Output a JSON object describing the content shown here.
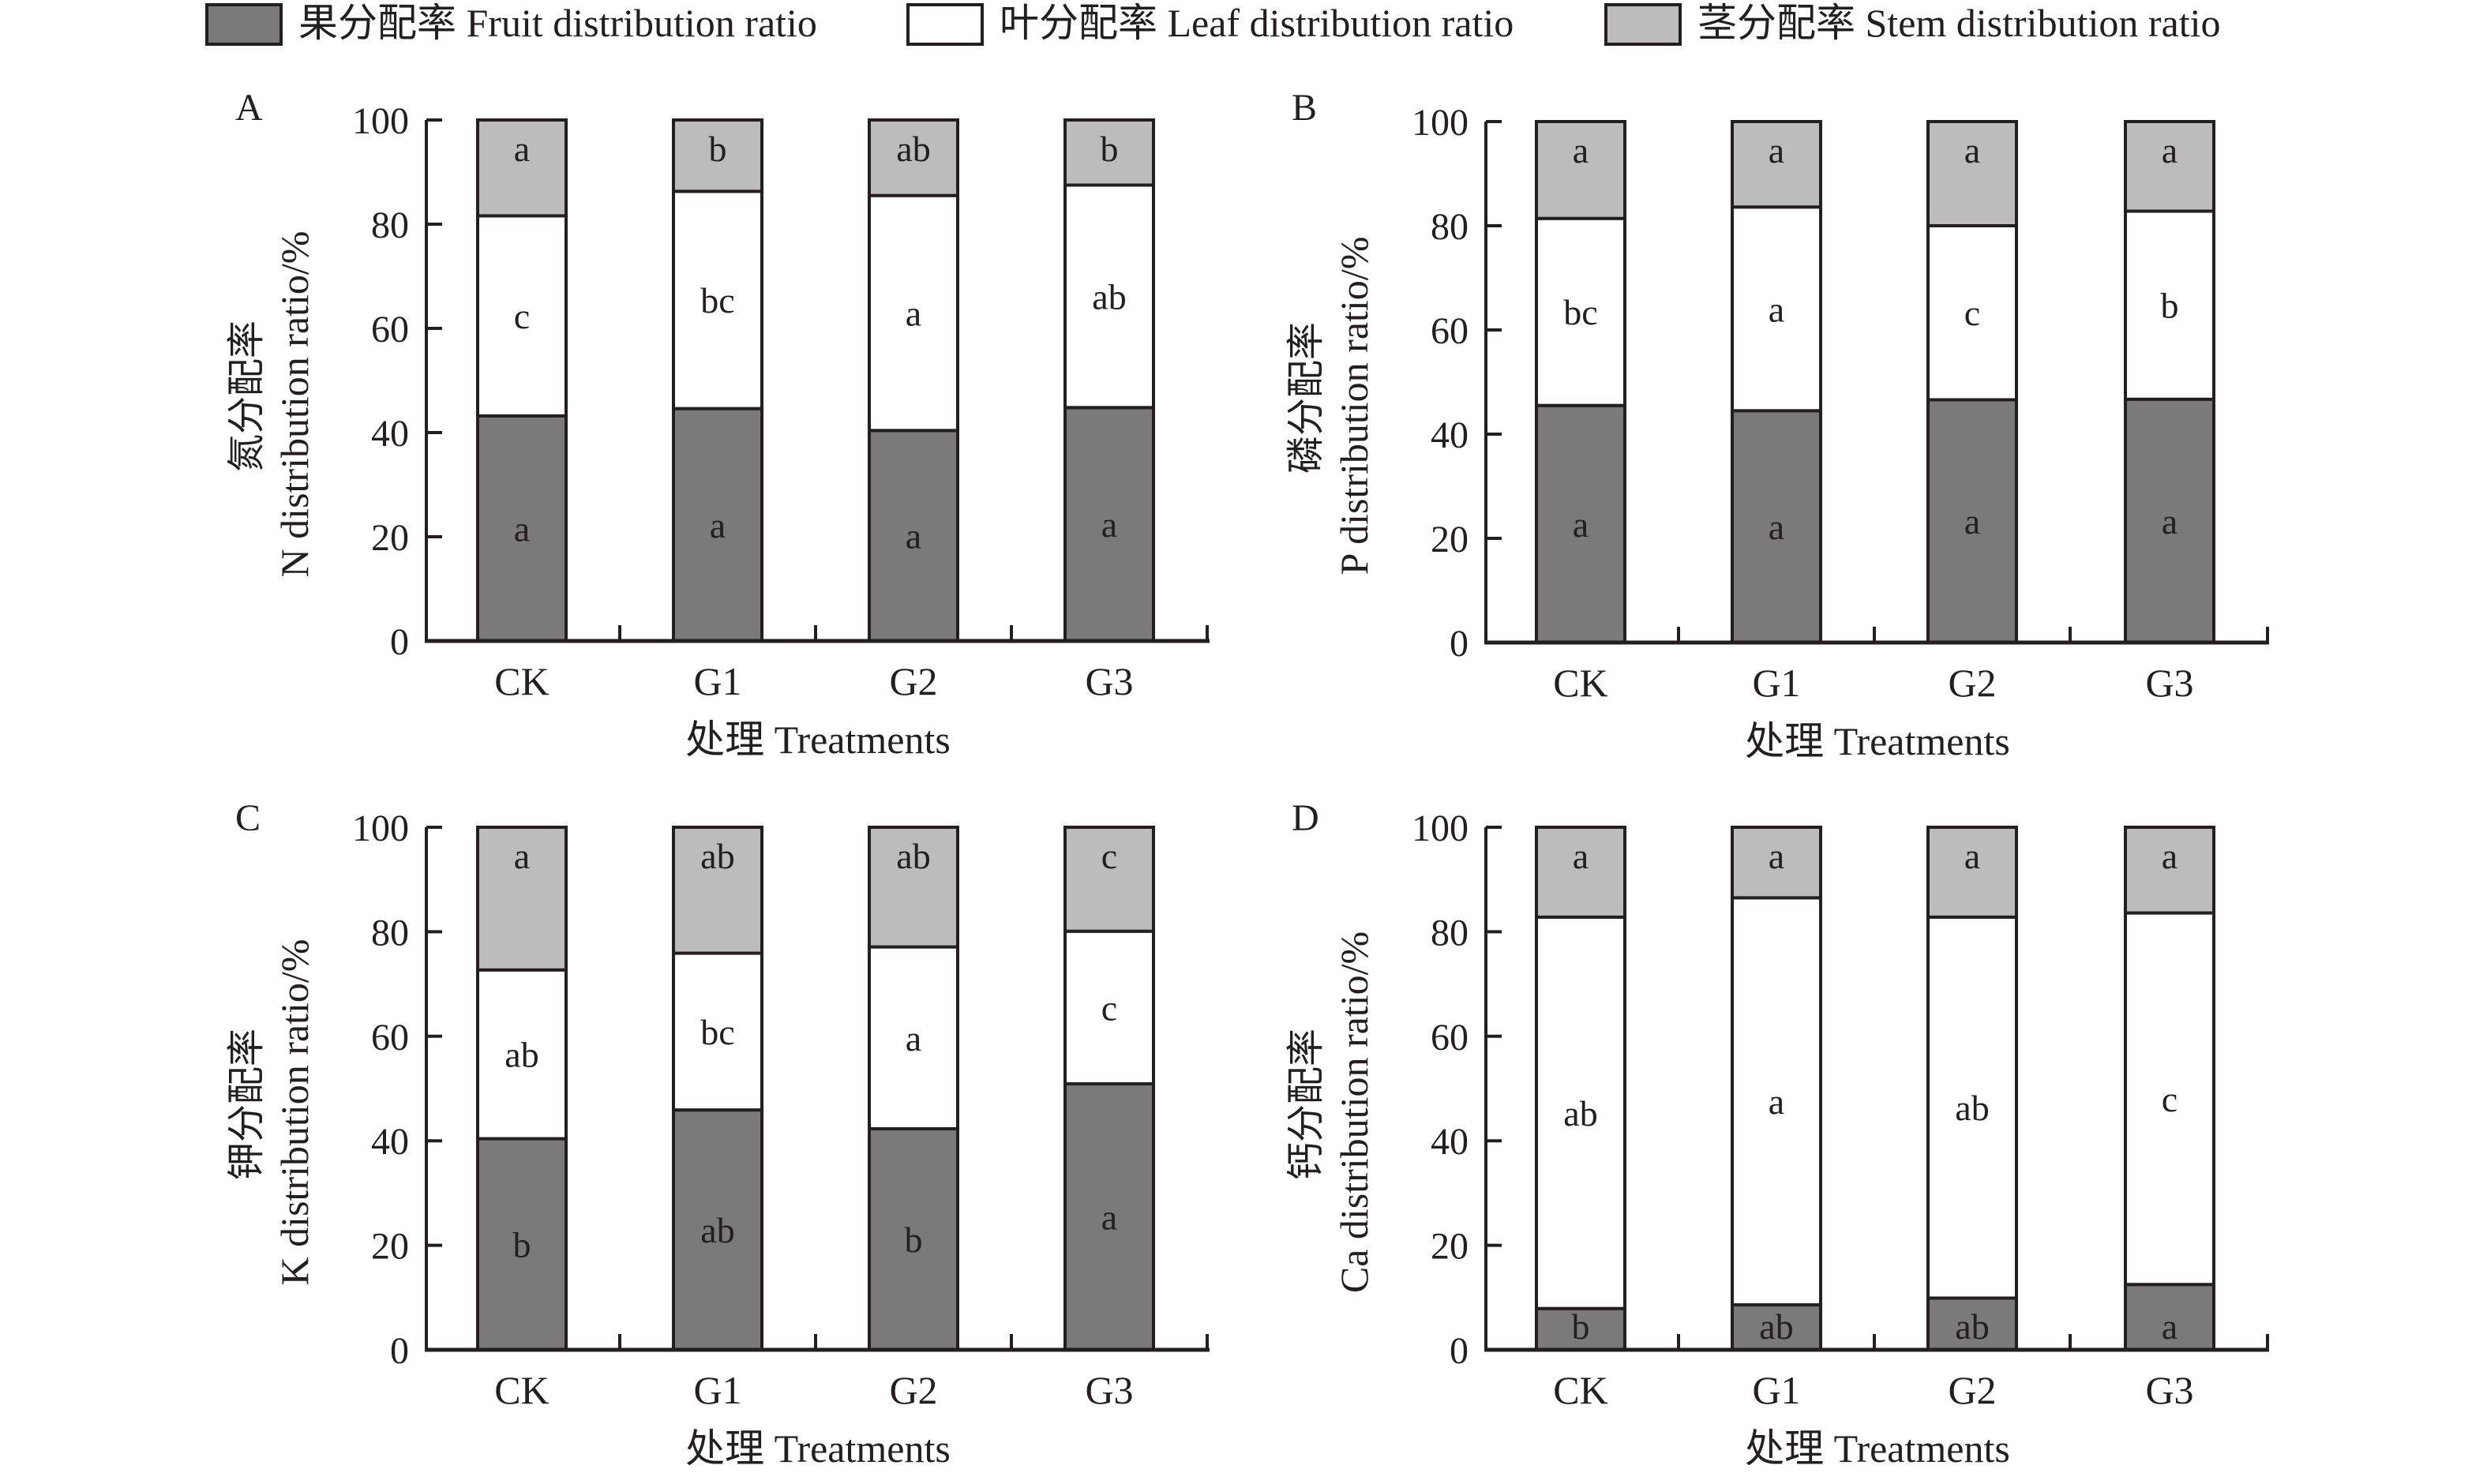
{
  "chart_data": [
    {
      "panel": "A",
      "type": "bar",
      "stacked": true,
      "categories": [
        "CK",
        "G1",
        "G2",
        "G3"
      ],
      "xlabel": "处理 Treatments",
      "ylabel_cn": "氮分配率",
      "ylabel_en": "N distribution ratio/%",
      "ylim": [
        0,
        100
      ],
      "yticks": [
        0,
        20,
        40,
        60,
        80,
        100
      ],
      "series": [
        {
          "name": "果分配率 Fruit distribution ratio",
          "key": "fruit",
          "values": [
            43.2,
            44.6,
            40.4,
            44.8
          ],
          "letters": [
            "a",
            "a",
            "a",
            "a"
          ]
        },
        {
          "name": "叶分配率 Leaf distribution ratio",
          "key": "leaf",
          "values": [
            38.4,
            41.7,
            45.1,
            42.7
          ],
          "letters": [
            "c",
            "bc",
            "a",
            "ab"
          ]
        },
        {
          "name": "茎分配率 Stem distribution ratio",
          "key": "stem",
          "values": [
            18.4,
            13.7,
            14.5,
            12.5
          ],
          "letters": [
            "a",
            "b",
            "ab",
            "b"
          ]
        }
      ]
    },
    {
      "panel": "B",
      "type": "bar",
      "stacked": true,
      "categories": [
        "CK",
        "G1",
        "G2",
        "G3"
      ],
      "xlabel": "处理 Treatments",
      "ylabel_cn": "磷分配率",
      "ylabel_en": "P distribution ratio/%",
      "ylim": [
        0,
        100
      ],
      "yticks": [
        0,
        20,
        40,
        60,
        80,
        100
      ],
      "series": [
        {
          "name": "果分配率 Fruit distribution ratio",
          "key": "fruit",
          "values": [
            45.5,
            44.5,
            46.6,
            46.7
          ],
          "letters": [
            "a",
            "a",
            "a",
            "a"
          ]
        },
        {
          "name": "叶分配率 Leaf distribution ratio",
          "key": "leaf",
          "values": [
            35.9,
            39.1,
            33.4,
            36.1
          ],
          "letters": [
            "bc",
            "a",
            "c",
            "b"
          ]
        },
        {
          "name": "茎分配率 Stem distribution ratio",
          "key": "stem",
          "values": [
            18.6,
            16.4,
            20.0,
            17.2
          ],
          "letters": [
            "a",
            "a",
            "a",
            "a"
          ]
        }
      ]
    },
    {
      "panel": "C",
      "type": "bar",
      "stacked": true,
      "categories": [
        "CK",
        "G1",
        "G2",
        "G3"
      ],
      "xlabel": "处理 Treatments",
      "ylabel_cn": "钾分配率",
      "ylabel_en": "K distribution ratio/%",
      "ylim": [
        0,
        100
      ],
      "yticks": [
        0,
        20,
        40,
        60,
        80,
        100
      ],
      "series": [
        {
          "name": "果分配率 Fruit distribution ratio",
          "key": "fruit",
          "values": [
            40.4,
            45.9,
            42.3,
            50.9
          ],
          "letters": [
            "b",
            "ab",
            "b",
            "a"
          ]
        },
        {
          "name": "叶分配率 Leaf distribution ratio",
          "key": "leaf",
          "values": [
            32.3,
            30.0,
            34.8,
            29.2
          ],
          "letters": [
            "ab",
            "bc",
            "a",
            "c"
          ]
        },
        {
          "name": "茎分配率 Stem distribution ratio",
          "key": "stem",
          "values": [
            27.3,
            24.1,
            22.9,
            19.9
          ],
          "letters": [
            "a",
            "ab",
            "ab",
            "c"
          ]
        }
      ]
    },
    {
      "panel": "D",
      "type": "bar",
      "stacked": true,
      "categories": [
        "CK",
        "G1",
        "G2",
        "G3"
      ],
      "xlabel": "处理 Treatments",
      "ylabel_cn": "钙分配率",
      "ylabel_en": "Ca distribution ratio/%",
      "ylim": [
        0,
        100
      ],
      "yticks": [
        0,
        20,
        40,
        60,
        80,
        100
      ],
      "series": [
        {
          "name": "果分配率 Fruit distribution ratio",
          "key": "fruit",
          "values": [
            7.9,
            8.6,
            9.9,
            12.5
          ],
          "letters": [
            "b",
            "ab",
            "ab",
            "a"
          ]
        },
        {
          "name": "叶分配率 Leaf distribution ratio",
          "key": "leaf",
          "values": [
            74.9,
            77.9,
            72.9,
            71.1
          ],
          "letters": [
            "ab",
            "a",
            "ab",
            "c"
          ]
        },
        {
          "name": "茎分配率 Stem distribution ratio",
          "key": "stem",
          "values": [
            17.2,
            13.5,
            17.2,
            16.4
          ],
          "letters": [
            "a",
            "a",
            "a",
            "a"
          ]
        }
      ]
    }
  ],
  "legend": {
    "position": "top",
    "items": [
      {
        "key": "fruit",
        "label": "果分配率 Fruit distribution ratio",
        "color": "#7b797a"
      },
      {
        "key": "leaf",
        "label": "叶分配率 Leaf distribution ratio",
        "color": "#ffffff"
      },
      {
        "key": "stem",
        "label": "茎分配率 Stem distribution ratio",
        "color": "#bcbcbc"
      }
    ]
  },
  "colors": {
    "fruit": "#7b797a",
    "leaf": "#ffffff",
    "stem": "#bcbcbc",
    "stroke": "#231f20"
  }
}
